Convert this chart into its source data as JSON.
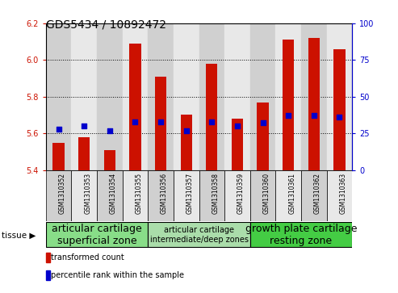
{
  "title": "GDS5434 / 10892472",
  "samples": [
    "GSM1310352",
    "GSM1310353",
    "GSM1310354",
    "GSM1310355",
    "GSM1310356",
    "GSM1310357",
    "GSM1310358",
    "GSM1310359",
    "GSM1310360",
    "GSM1310361",
    "GSM1310362",
    "GSM1310363"
  ],
  "bar_values": [
    5.55,
    5.58,
    5.51,
    6.09,
    5.91,
    5.7,
    5.98,
    5.68,
    5.77,
    6.11,
    6.12,
    6.06
  ],
  "percentile_values": [
    28,
    30,
    27,
    33,
    33,
    27,
    33,
    30,
    32,
    37,
    37,
    36
  ],
  "bar_bottom": 5.4,
  "ylim_left": [
    5.4,
    6.2
  ],
  "ylim_right": [
    0,
    100
  ],
  "yticks_left": [
    5.4,
    5.6,
    5.8,
    6.0,
    6.2
  ],
  "yticks_right": [
    0,
    25,
    50,
    75,
    100
  ],
  "bar_color": "#cc1100",
  "dot_color": "#0000cc",
  "plot_bg_color": "#ffffff",
  "col_bg_even": "#d0d0d0",
  "col_bg_odd": "#e8e8e8",
  "tissue_groups": [
    {
      "label": "articular cartilage\nsuperficial zone",
      "start": 0,
      "end": 3,
      "color": "#88dd88",
      "fontsize": 9
    },
    {
      "label": "articular cartilage\nintermediate/deep zones",
      "start": 4,
      "end": 7,
      "color": "#aaddaa",
      "fontsize": 7
    },
    {
      "label": "growth plate cartilage\nresting zone",
      "start": 8,
      "end": 11,
      "color": "#44cc44",
      "fontsize": 9
    }
  ],
  "legend_bar_label": "transformed count",
  "legend_dot_label": "percentile rank within the sample",
  "tissue_label": "tissue ▶",
  "title_fontsize": 10,
  "tick_fontsize": 7,
  "sample_fontsize": 5.5
}
